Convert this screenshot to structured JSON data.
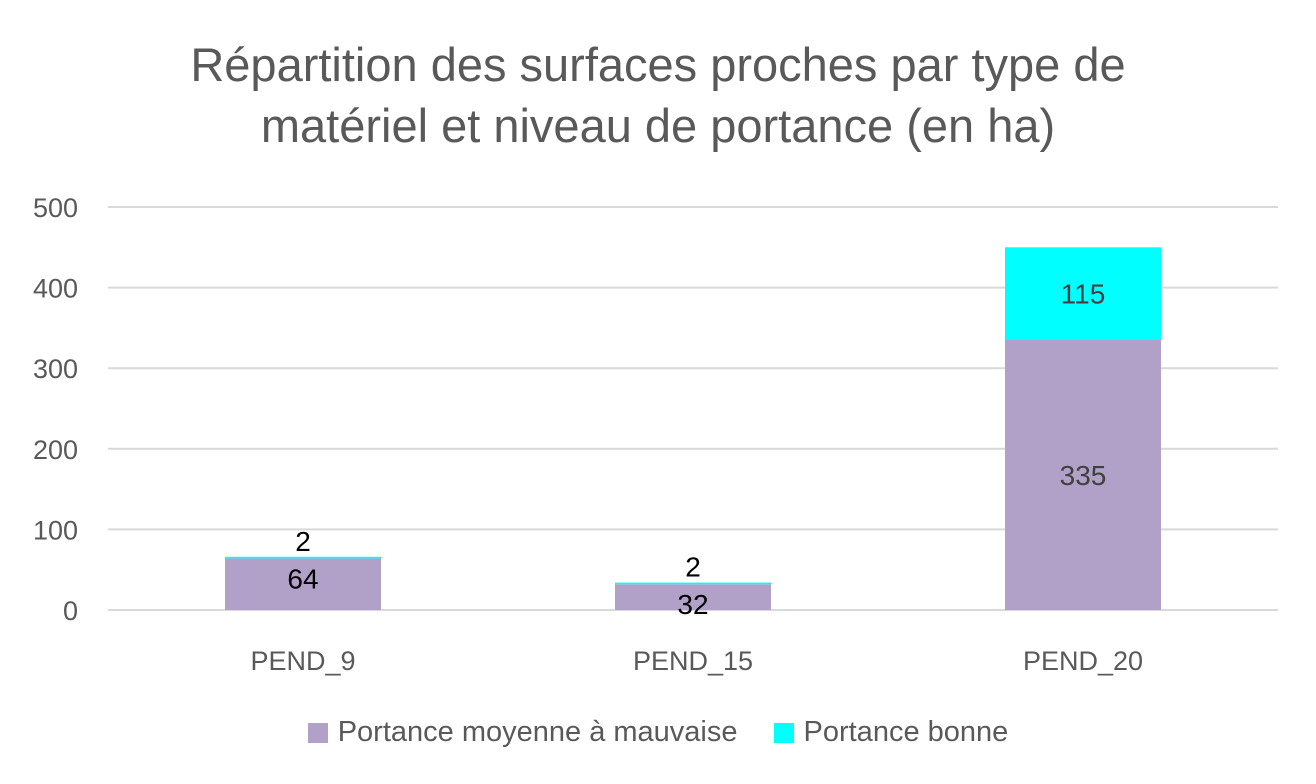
{
  "chart_data": {
    "type": "bar",
    "stacked": true,
    "title_lines": [
      "Répartition des surfaces proches par type de",
      "matériel et niveau de portance (en ha)"
    ],
    "categories": [
      "PEND_9",
      "PEND_15",
      "PEND_20"
    ],
    "series": [
      {
        "name": "Portance moyenne à mauvaise",
        "values": [
          64,
          32,
          335
        ],
        "color": "#b1a0c7",
        "label_color": "#000000"
      },
      {
        "name": "Portance bonne",
        "values": [
          2,
          2,
          115
        ],
        "color": "#00ffff",
        "label_color": "#000000"
      }
    ],
    "y_ticks": [
      "0",
      "100",
      "200",
      "300",
      "400",
      "500"
    ],
    "ylim": [
      0,
      500
    ],
    "grid": true,
    "legend_position": "bottom"
  }
}
